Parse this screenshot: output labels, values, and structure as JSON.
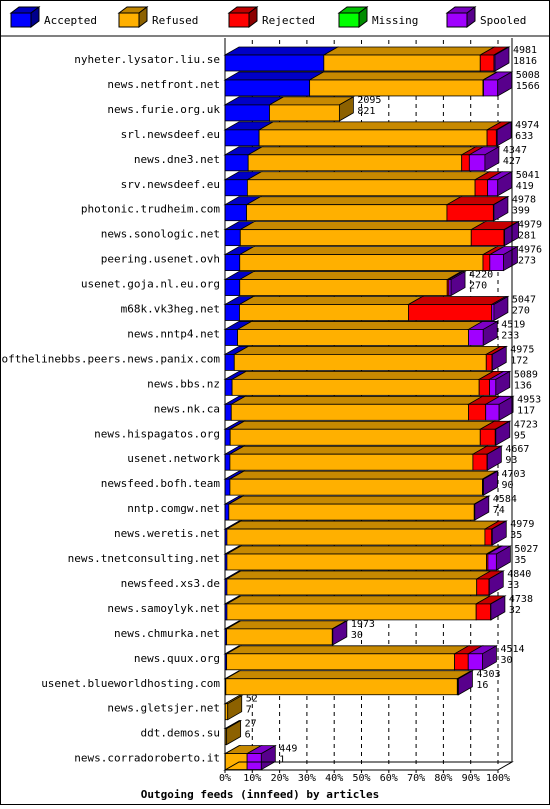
{
  "chart_data": {
    "type": "bar",
    "orientation": "horizontal",
    "stacked": true,
    "title": "",
    "xlabel": "Outgoing feeds (innfeed) by articles",
    "ylabel": "",
    "xlim": [
      0,
      100
    ],
    "x_ticks": [
      "0%",
      "10%",
      "20%",
      "30%",
      "40%",
      "50%",
      "60%",
      "70%",
      "80%",
      "90%",
      "100%"
    ],
    "grid": true,
    "legend_position": "top",
    "legend": [
      {
        "name": "Accepted",
        "color": "#0000ff"
      },
      {
        "name": "Refused",
        "color": "#ffb000"
      },
      {
        "name": "Rejected",
        "color": "#ff0000"
      },
      {
        "name": "Missing",
        "color": "#00ff00"
      },
      {
        "name": "Spooled",
        "color": "#a000ff"
      }
    ],
    "categories": [
      "nyheter.lysator.liu.se",
      "news.netfront.net",
      "news.furie.org.uk",
      "srl.newsdeef.eu",
      "news.dne3.net",
      "srv.newsdeef.eu",
      "photonic.trudheim.com",
      "news.sonologic.net",
      "peering.usenet.ovh",
      "usenet.goja.nl.eu.org",
      "m68k.vk3heg.net",
      "news.nntp4.net",
      "endofthelinebbs.peers.news.panix.com",
      "news.bbs.nz",
      "news.nk.ca",
      "news.hispagatos.org",
      "usenet.network",
      "newsfeed.bofh.team",
      "nntp.comgw.net",
      "news.weretis.net",
      "news.tnetconsulting.net",
      "newsfeed.xs3.de",
      "news.samoylyk.net",
      "news.chmurka.net",
      "news.quux.org",
      "usenet.blueworldhosting.com",
      "news.gletsjer.net",
      "ddt.demos.su",
      "news.corradoroberto.it"
    ],
    "offered": [
      4981,
      5008,
      2095,
      4974,
      4347,
      5041,
      4978,
      4979,
      4976,
      4220,
      5047,
      4519,
      4975,
      5089,
      4953,
      4723,
      4667,
      4703,
      4584,
      4979,
      5027,
      4840,
      4738,
      1973,
      4514,
      4303,
      52,
      27,
      449
    ],
    "accepted": [
      1816,
      1566,
      821,
      633,
      427,
      419,
      399,
      281,
      273,
      270,
      270,
      233,
      172,
      136,
      117,
      95,
      93,
      90,
      74,
      35,
      35,
      33,
      32,
      30,
      30,
      16,
      7,
      6,
      1
    ],
    "series": [
      {
        "name": "Accepted",
        "color": "#0000ff",
        "values": [
          36.2,
          31.0,
          16.3,
          12.5,
          8.5,
          8.2,
          7.9,
          5.6,
          5.4,
          5.4,
          5.3,
          4.6,
          3.4,
          2.6,
          2.3,
          1.9,
          1.8,
          1.8,
          1.4,
          0.7,
          0.7,
          0.7,
          0.7,
          0.6,
          0.6,
          0.3,
          0.1,
          0.1,
          0.1
        ]
      },
      {
        "name": "Refused",
        "color": "#ffb000",
        "values": [
          57.3,
          63.5,
          25.6,
          83.5,
          78.2,
          83.4,
          73.4,
          84.6,
          89.1,
          76.0,
          61.9,
          84.6,
          92.3,
          90.5,
          86.9,
          91.6,
          89.0,
          92.5,
          89.9,
          94.5,
          95.1,
          91.5,
          91.3,
          38.7,
          83.5,
          84.8,
          0.9,
          0.5,
          8.0
        ]
      },
      {
        "name": "Rejected",
        "color": "#ff0000",
        "values": [
          5.0,
          0.2,
          0.0,
          3.4,
          2.8,
          4.6,
          17.0,
          12.0,
          2.5,
          0.6,
          30.5,
          0.0,
          2.1,
          3.8,
          6.3,
          5.5,
          5.2,
          0.2,
          0.1,
          2.5,
          0.5,
          4.5,
          5.3,
          0.1,
          5.0,
          0.2,
          0.0,
          0.0,
          0.0
        ]
      },
      {
        "name": "Missing",
        "color": "#00ff00",
        "values": [
          0,
          0,
          0,
          0,
          0,
          0,
          0,
          0,
          0,
          0,
          0,
          0,
          0,
          0,
          0,
          0,
          0,
          0,
          0,
          0,
          0,
          0,
          0,
          0,
          0,
          0,
          0,
          0,
          0
        ]
      },
      {
        "name": "Spooled",
        "color": "#a000ff",
        "values": [
          0.4,
          5.2,
          0.0,
          0.3,
          5.7,
          3.7,
          0.2,
          0.2,
          5.0,
          0.8,
          0.8,
          5.4,
          0.1,
          2.3,
          4.9,
          0.2,
          0.1,
          0.2,
          0.1,
          0.2,
          3.1,
          0.1,
          0.1,
          0.1,
          5.2,
          0.2,
          0.0,
          0.0,
          5.2
        ]
      }
    ]
  }
}
